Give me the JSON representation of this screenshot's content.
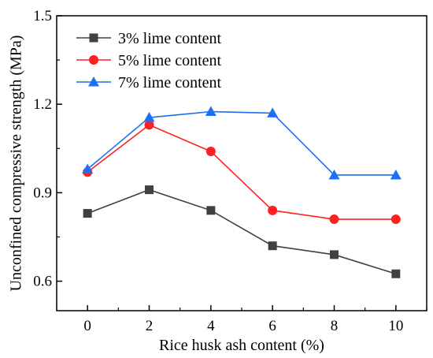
{
  "chart_data": {
    "type": "line",
    "x": [
      0,
      2,
      4,
      6,
      8,
      10
    ],
    "xlabel": "Rice husk ash content (%)",
    "ylabel": "Unconfined compressive strength (MPa)",
    "xlim": [
      -1,
      11
    ],
    "ylim": [
      0.5,
      1.5
    ],
    "xticks": [
      "0",
      "2",
      "4",
      "6",
      "8",
      "10"
    ],
    "yticks": [
      "0.6",
      "0.9",
      "1.2",
      "1.5"
    ],
    "grid": false,
    "legend_position": "top-left",
    "series": [
      {
        "name": "3% lime content",
        "values": [
          0.83,
          0.91,
          0.84,
          0.72,
          0.69,
          0.625
        ],
        "color": "#404040",
        "marker": "square"
      },
      {
        "name": "5% lime content",
        "values": [
          0.97,
          1.13,
          1.04,
          0.84,
          0.81,
          0.81
        ],
        "color": "#ff2020",
        "marker": "circle"
      },
      {
        "name": "7% lime content",
        "values": [
          0.98,
          1.155,
          1.175,
          1.17,
          0.96,
          0.96
        ],
        "color": "#1e6ff2",
        "marker": "triangle"
      }
    ]
  }
}
